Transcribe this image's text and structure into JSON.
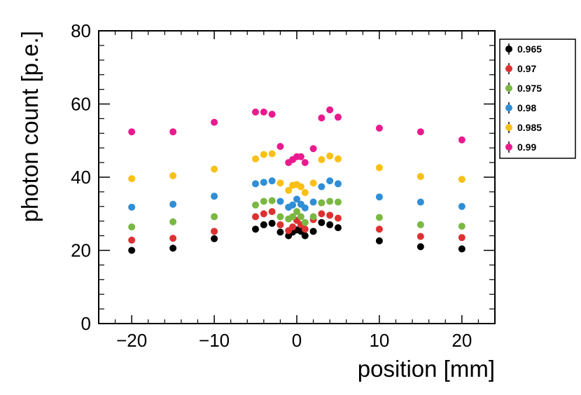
{
  "chart_data": {
    "type": "scatter",
    "title": "",
    "xlabel": "position [mm]",
    "ylabel": "photon count [p.e.]",
    "xlim": [
      -24,
      24
    ],
    "ylim": [
      0,
      80
    ],
    "x_ticks": [
      -20,
      -10,
      0,
      10,
      20
    ],
    "x_tick_labels": [
      "−20",
      "−10",
      "0",
      "10",
      "20"
    ],
    "y_ticks": [
      0,
      20,
      40,
      60,
      80
    ],
    "y_tick_labels": [
      "0",
      "20",
      "40",
      "60",
      "80"
    ],
    "legend_position": "right",
    "x": [
      -20,
      -15,
      -10,
      -5,
      -4,
      -3,
      -2,
      -1,
      -0.5,
      0,
      0.5,
      1,
      2,
      3,
      4,
      5,
      10,
      15,
      20
    ],
    "series": [
      {
        "name": "0.965",
        "color": "#000000",
        "values": [
          20.0,
          20.6,
          23.2,
          25.8,
          27.0,
          27.4,
          25.0,
          24.0,
          25.0,
          25.6,
          25.2,
          24.0,
          25.2,
          27.6,
          27.0,
          26.2,
          22.6,
          21.0,
          20.4
        ]
      },
      {
        "name": "0.97",
        "color": "#de3030",
        "values": [
          22.8,
          23.3,
          25.2,
          29.2,
          30.0,
          30.6,
          27.0,
          25.4,
          26.4,
          28.2,
          27.0,
          25.8,
          28.4,
          30.0,
          29.6,
          28.8,
          25.8,
          23.8,
          23.5
        ]
      },
      {
        "name": "0.975",
        "color": "#7ab842",
        "values": [
          26.4,
          27.8,
          29.2,
          32.4,
          33.4,
          33.6,
          29.2,
          28.6,
          29.2,
          30.6,
          29.2,
          27.6,
          29.2,
          33.0,
          33.4,
          33.2,
          29.0,
          27.0,
          26.6
        ]
      },
      {
        "name": "0.98",
        "color": "#2f8ed6",
        "values": [
          31.8,
          32.6,
          34.8,
          38.2,
          38.6,
          39.0,
          33.4,
          31.8,
          32.4,
          34.0,
          32.6,
          31.6,
          33.2,
          37.4,
          39.0,
          38.2,
          34.6,
          33.2,
          32.0
        ]
      },
      {
        "name": "0.985",
        "color": "#f9c015",
        "values": [
          39.6,
          40.4,
          42.2,
          45.0,
          46.2,
          46.4,
          38.4,
          36.4,
          37.8,
          38.0,
          37.4,
          35.8,
          38.4,
          44.8,
          45.8,
          45.0,
          42.6,
          40.2,
          39.4
        ]
      },
      {
        "name": "0.99",
        "color": "#ea1a8e",
        "values": [
          52.4,
          52.4,
          55.0,
          57.8,
          57.8,
          57.2,
          48.4,
          44.0,
          44.8,
          45.6,
          45.6,
          44.0,
          47.8,
          56.2,
          58.4,
          56.4,
          53.4,
          52.4,
          50.2
        ]
      }
    ]
  }
}
